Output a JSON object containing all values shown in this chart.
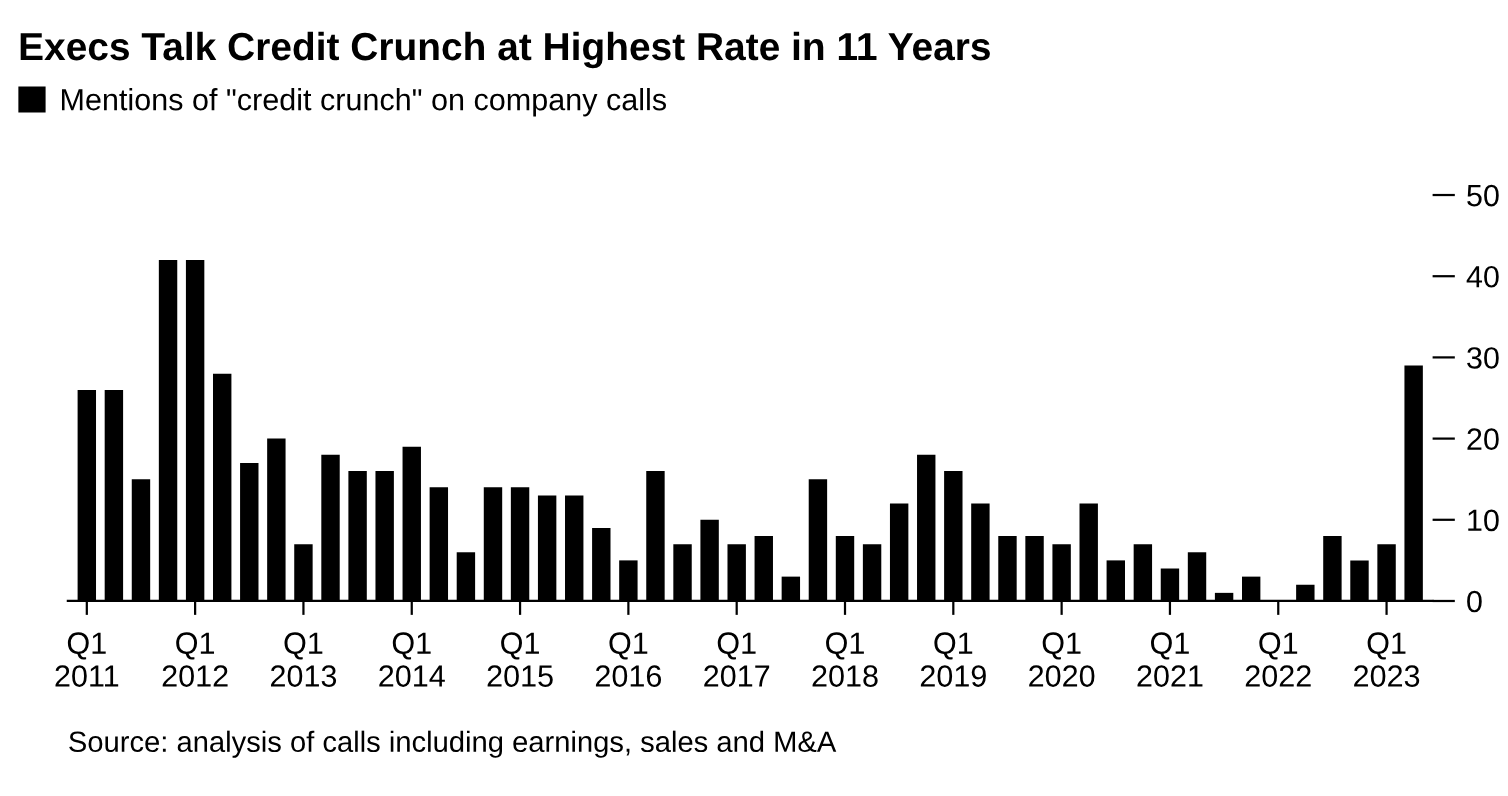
{
  "chart_data": {
    "type": "bar",
    "title": "Execs Talk Credit Crunch at Highest Rate in 11 Years",
    "categories": [
      "Q1\n2011",
      null,
      null,
      null,
      "Q1\n2012",
      null,
      null,
      null,
      "Q1\n2013",
      null,
      null,
      null,
      "Q1\n2014",
      null,
      null,
      null,
      "Q1\n2015",
      null,
      null,
      null,
      "Q1\n2016",
      null,
      null,
      null,
      "Q1\n2017",
      null,
      null,
      null,
      "Q1\n2018",
      null,
      null,
      null,
      "Q1\n2019",
      null,
      null,
      null,
      "Q1\n2020",
      null,
      null,
      null,
      "Q1\n2021",
      null,
      null,
      null,
      "Q1\n2022",
      null,
      null,
      null,
      "Q1\n2023",
      null
    ],
    "series": [
      {
        "name": "Mentions of \"credit crunch\" on company calls",
        "color": "#000000",
        "values": [
          26,
          26,
          15,
          42,
          42,
          28,
          17,
          20,
          7,
          18,
          16,
          16,
          19,
          14,
          6,
          14,
          14,
          13,
          13,
          9,
          5,
          16,
          7,
          10,
          7,
          8,
          3,
          15,
          8,
          7,
          12,
          18,
          16,
          12,
          8,
          8,
          7,
          12,
          5,
          7,
          4,
          6,
          1,
          3,
          0,
          2,
          8,
          5,
          7,
          29
        ]
      }
    ],
    "ylim": [
      0,
      50
    ],
    "yticks": [
      0,
      10,
      20,
      30,
      40,
      50
    ],
    "grid": false,
    "legend": "top left",
    "annotations": [
      "Source: analysis of calls including earnings, sales and M&A"
    ]
  }
}
